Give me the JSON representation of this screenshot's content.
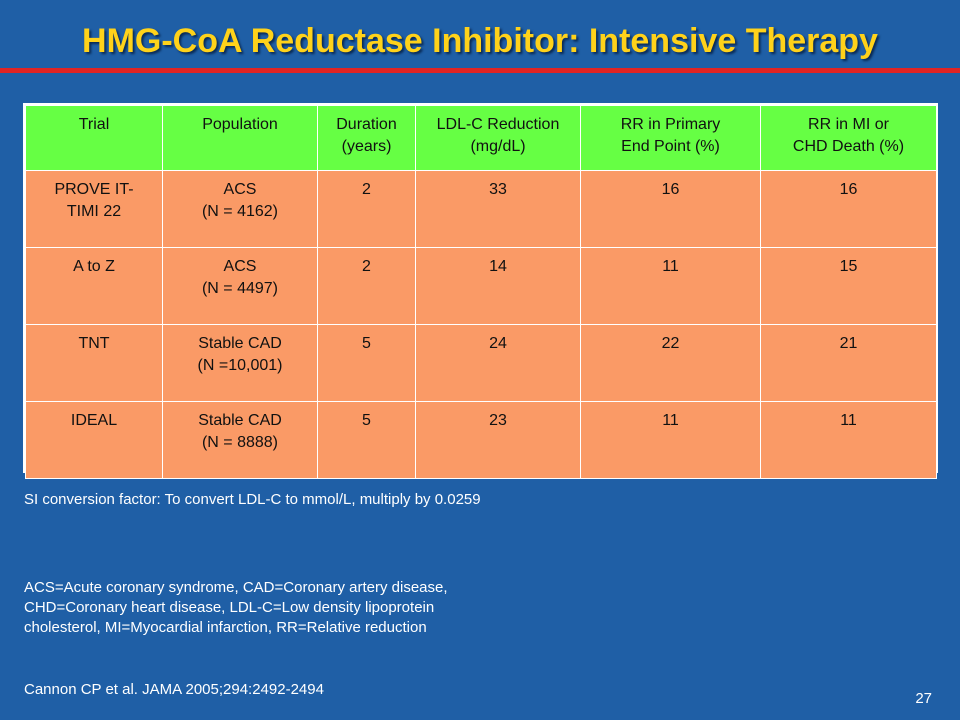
{
  "title": "HMG-CoA Reductase Inhibitor: Intensive Therapy",
  "table": {
    "headers": [
      [
        "Trial"
      ],
      [
        "Population"
      ],
      [
        "Duration",
        "(years)"
      ],
      [
        "LDL-C Reduction",
        "(mg/dL)"
      ],
      [
        "RR in Primary",
        "End Point (%)"
      ],
      [
        "RR in MI or",
        "CHD Death (%)"
      ]
    ],
    "rows": [
      [
        [
          "PROVE IT-",
          "TIMI 22"
        ],
        [
          "ACS",
          "(N = 4162)"
        ],
        [
          "2"
        ],
        [
          "33"
        ],
        [
          "16"
        ],
        [
          "16"
        ]
      ],
      [
        [
          "A to Z"
        ],
        [
          "ACS",
          "(N = 4497)"
        ],
        [
          "2"
        ],
        [
          "14"
        ],
        [
          "11"
        ],
        [
          "15"
        ]
      ],
      [
        [
          "TNT"
        ],
        [
          "Stable CAD",
          "(N =10,001)"
        ],
        [
          "5"
        ],
        [
          "24"
        ],
        [
          "22"
        ],
        [
          "21"
        ]
      ],
      [
        [
          "IDEAL"
        ],
        [
          "Stable CAD",
          "(N = 8888)"
        ],
        [
          "5"
        ],
        [
          "23"
        ],
        [
          "11"
        ],
        [
          "11"
        ]
      ]
    ]
  },
  "notes": {
    "si_conversion": "SI conversion factor: To convert LDL-C to mmol/L, multiply by 0.0259",
    "abbreviations": "ACS=Acute coronary syndrome, CAD=Coronary artery disease, CHD=Coronary heart disease, LDL-C=Low density lipoprotein cholesterol, MI=Myocardial infarction, RR=Relative reduction",
    "citation": "Cannon CP et al. JAMA 2005;294:2492-2494"
  },
  "page_number": "27",
  "colors": {
    "background": "#1f5fa6",
    "title": "#ffd21a",
    "title_rule": "#e02424",
    "header_fill": "#66ff44",
    "row_fill": "#fa9a66"
  }
}
